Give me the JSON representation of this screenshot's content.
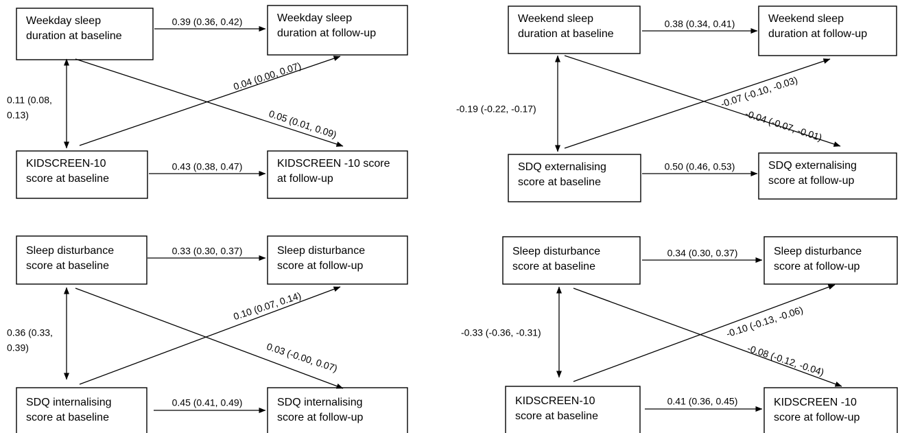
{
  "diagrams": [
    {
      "boxes": {
        "a_base": [
          "Weekday sleep",
          "duration at baseline"
        ],
        "a_follow": [
          "Weekday sleep",
          "duration at follow-up"
        ],
        "b_base": [
          "KIDSCREEN-10",
          "score at baseline"
        ],
        "b_follow": [
          "KIDSCREEN -10 score",
          "at follow-up"
        ]
      },
      "paths": {
        "a_to_a": "0.39 (0.36, 0.42)",
        "b_to_a": "0.04 (0.00, 0.07)",
        "a_to_b": "0.05 (0.01, 0.09)",
        "b_to_b": "0.43 (0.38, 0.47)",
        "covariance": [
          "0.11 (0.08,",
          "0.13)"
        ]
      }
    },
    {
      "boxes": {
        "a_base": [
          "Weekend sleep",
          "duration at baseline"
        ],
        "a_follow": [
          "Weekend sleep",
          "duration at follow-up"
        ],
        "b_base": [
          "SDQ externalising",
          "score at baseline"
        ],
        "b_follow": [
          "SDQ externalising",
          "score at follow-up"
        ]
      },
      "paths": {
        "a_to_a": "0.38 (0.34, 0.41)",
        "b_to_a": "-0.07 (-0.10, -0.03)",
        "a_to_b": "-0.04 (-0.07, -0.01)",
        "b_to_b": "0.50 (0.46, 0.53)",
        "covariance": [
          "-0.19 (-0.22, -0.17)"
        ]
      }
    },
    {
      "boxes": {
        "a_base": [
          "Sleep disturbance",
          "score at baseline"
        ],
        "a_follow": [
          "Sleep disturbance",
          "score at follow-up"
        ],
        "b_base": [
          "SDQ internalising",
          "score at baseline"
        ],
        "b_follow": [
          "SDQ internalising",
          "score at follow-up"
        ]
      },
      "paths": {
        "a_to_a": "0.33 (0.30, 0.37)",
        "b_to_a": "0.10 (0.07, 0.14)",
        "a_to_b": "0.03 (-0.00, 0.07)",
        "b_to_b": "0.45 (0.41, 0.49)",
        "covariance": [
          "0.36 (0.33,",
          "0.39)"
        ]
      }
    },
    {
      "boxes": {
        "a_base": [
          "Sleep disturbance",
          "score at baseline"
        ],
        "a_follow": [
          "Sleep disturbance",
          "score at follow-up"
        ],
        "b_base": [
          "KIDSCREEN-10",
          "score at baseline"
        ],
        "b_follow": [
          "KIDSCREEN -10",
          "score at follow-up"
        ]
      },
      "paths": {
        "a_to_a": "0.34 (0.30, 0.37)",
        "b_to_a": "-0.10 (-0.13, -0.06)",
        "a_to_b": "-0.08 (-0.12, -0.04)",
        "b_to_b": "0.41 (0.36, 0.45)",
        "covariance": [
          "-0.33 (-0.36, -0.31)"
        ]
      }
    }
  ]
}
